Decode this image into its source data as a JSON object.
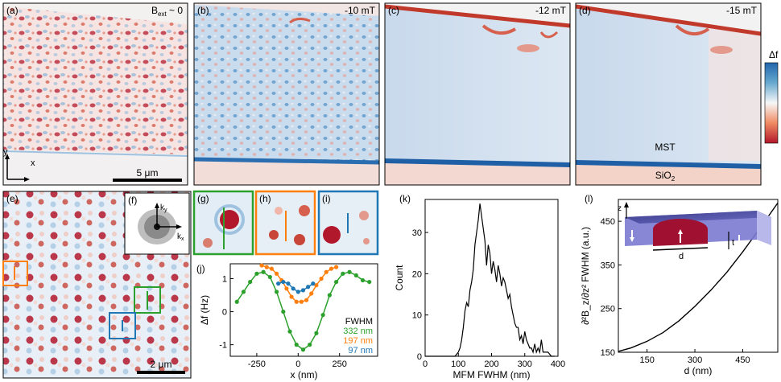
{
  "panels": {
    "a": {
      "label": "(a)",
      "field": "B",
      "field_sub": "ext",
      "field_rest": " ~ 0",
      "x_axis": "x",
      "y_axis": "y",
      "scalebar": "5 μm"
    },
    "b": {
      "label": "(b)",
      "field": "-10 mT"
    },
    "c": {
      "label": "(c)",
      "field": "-12 mT"
    },
    "d": {
      "label": "(d)",
      "field": "-15 mT",
      "mst": "MST",
      "sio2_main": "SiO",
      "sio2_sub": "2"
    },
    "colorbar": {
      "label": "Δf",
      "colors": [
        "#b2182b",
        "#f4f4f4",
        "#2166ac"
      ]
    },
    "e": {
      "label": "(e)",
      "scalebar": "2 μm"
    },
    "f": {
      "label": "(f)",
      "kx": "k",
      "kx_sub": "x",
      "ky": "k",
      "ky_sub": "y"
    },
    "g": {
      "label": "(g)",
      "color": "#2ca02c"
    },
    "h": {
      "label": "(h)",
      "color": "#ff7f0e"
    },
    "i": {
      "label": "(i)",
      "color": "#1f77b4"
    },
    "k": {
      "label": "(k)"
    },
    "l": {
      "label": "(l)",
      "z": "z",
      "t": "t",
      "d": "d"
    }
  },
  "chart_data": [
    {
      "id": "j",
      "type": "line",
      "title": "",
      "xlabel": "x (nm)",
      "ylabel": "Δf (Hz)",
      "xlim": [
        -410,
        480
      ],
      "ylim": [
        -1.35,
        1.45
      ],
      "xticks": [
        -250,
        0,
        250
      ],
      "yticks": [
        -1,
        0,
        1
      ],
      "legend_title": "FWHM",
      "legend_placement": "bottom-right",
      "series": [
        {
          "name": "332 nm",
          "color": "#2ca02c",
          "x": [
            -370,
            -330,
            -290,
            -250,
            -210,
            -170,
            -130,
            -90,
            -50,
            -10,
            30,
            70,
            110,
            150,
            190,
            230,
            270,
            310,
            350,
            390,
            430
          ],
          "y": [
            0.3,
            0.6,
            0.9,
            1.15,
            1.2,
            1.05,
            0.6,
            0.0,
            -0.6,
            -1.0,
            -1.15,
            -1.0,
            -0.65,
            -0.1,
            0.5,
            0.9,
            1.15,
            1.2,
            1.1,
            0.95,
            0.9
          ]
        },
        {
          "name": "197 nm",
          "color": "#ff7f0e",
          "x": [
            -220,
            -190,
            -160,
            -130,
            -100,
            -70,
            -40,
            -10,
            20,
            50,
            80,
            110,
            140,
            170,
            200,
            230
          ],
          "y": [
            1.4,
            1.35,
            1.3,
            1.15,
            0.95,
            0.7,
            0.45,
            0.3,
            0.3,
            0.35,
            0.55,
            0.8,
            1.0,
            1.2,
            1.3,
            1.35
          ]
        },
        {
          "name": "97 nm",
          "color": "#1f77b4",
          "x": [
            -120,
            -90,
            -60,
            -30,
            0,
            30,
            60,
            90
          ],
          "y": [
            0.85,
            0.9,
            0.85,
            0.7,
            0.6,
            0.65,
            0.75,
            0.85
          ]
        }
      ]
    },
    {
      "id": "k",
      "type": "line",
      "title": "",
      "xlabel": "MFM FWHM (nm)",
      "ylabel": "Count",
      "xlim": [
        0,
        400
      ],
      "ylim": [
        0,
        38
      ],
      "xticks": [
        0,
        100,
        200,
        300,
        400
      ],
      "yticks": [
        0,
        10,
        20,
        30
      ],
      "x": [
        0,
        75,
        80,
        90,
        100,
        105,
        110,
        115,
        120,
        125,
        130,
        135,
        140,
        145,
        150,
        155,
        160,
        165,
        170,
        175,
        180,
        185,
        190,
        195,
        200,
        205,
        210,
        215,
        220,
        225,
        230,
        235,
        240,
        245,
        250,
        255,
        260,
        265,
        270,
        275,
        280,
        285,
        290,
        295,
        300,
        305,
        310,
        315,
        320,
        325,
        330,
        335,
        340,
        345,
        350,
        355,
        360,
        370,
        380,
        390
      ],
      "y": [
        0,
        0,
        0,
        0,
        1,
        2,
        4,
        7,
        11,
        13,
        12,
        16,
        18,
        21,
        27,
        30,
        33,
        37,
        34,
        31,
        28,
        22,
        27,
        25,
        20,
        23,
        21,
        18,
        22,
        20,
        17,
        19,
        18,
        16,
        14,
        15,
        12,
        10,
        8,
        7,
        7,
        4,
        5,
        3,
        6,
        4,
        3,
        2,
        2,
        1,
        3,
        1,
        2,
        1,
        4,
        1,
        1,
        1,
        0,
        0
      ]
    },
    {
      "id": "l",
      "type": "line",
      "title": "",
      "xlabel": "d (nm)",
      "ylabel": "∂²B_z/∂z² FWHM (a.u.)",
      "xlim": [
        60,
        560
      ],
      "ylim": [
        150,
        500
      ],
      "xticks": [
        150,
        300,
        450
      ],
      "yticks": [
        150,
        250,
        350,
        450
      ],
      "x": [
        60,
        100,
        150,
        200,
        250,
        300,
        350,
        400,
        450,
        500,
        560
      ],
      "y": [
        152,
        160,
        175,
        195,
        222,
        255,
        292,
        333,
        380,
        430,
        492
      ]
    }
  ]
}
